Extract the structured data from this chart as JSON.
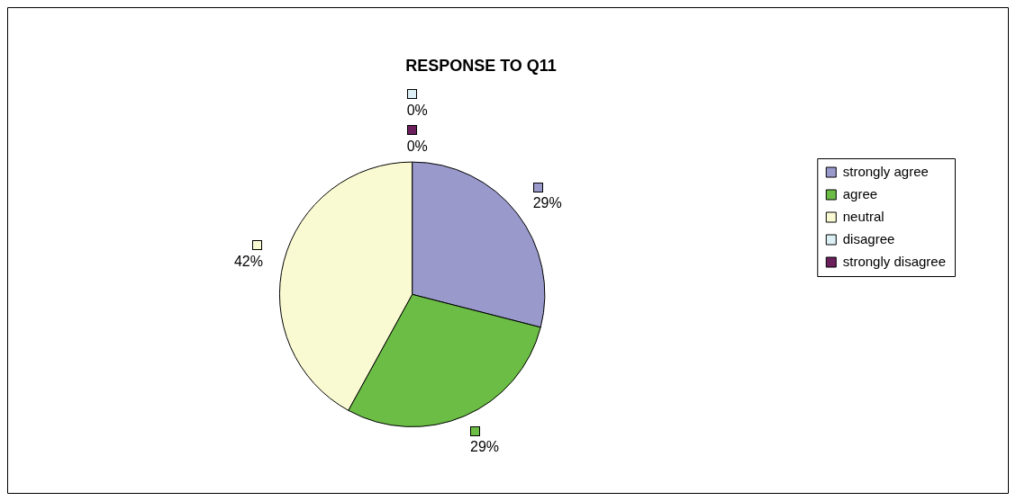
{
  "chart_data": {
    "type": "pie",
    "title": "RESPONSE TO Q11",
    "categories": [
      "strongly agree",
      "agree",
      "neutral",
      "disagree",
      "strongly disagree"
    ],
    "values": [
      29,
      29,
      42,
      0,
      0
    ],
    "value_labels": [
      "29%",
      "29%",
      "42%",
      "0%",
      "0%"
    ],
    "colors": [
      "#9999cc",
      "#6bbd45",
      "#fafad2",
      "#ddf0f5",
      "#6b1f5c"
    ],
    "legend": "right"
  }
}
